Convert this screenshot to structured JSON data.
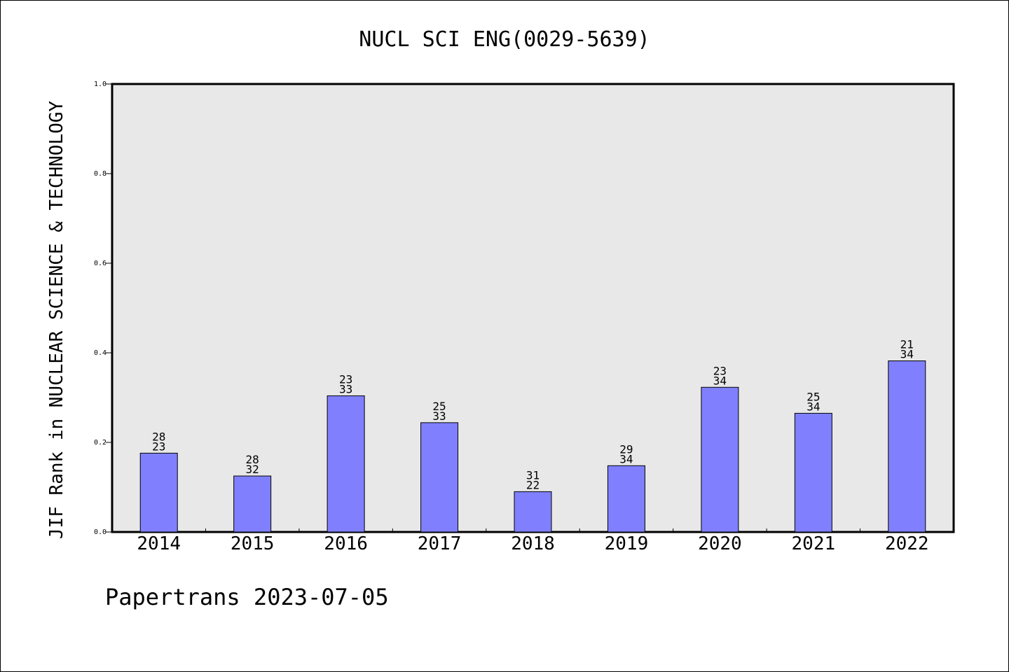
{
  "chart_data": {
    "type": "bar",
    "title": "NUCL SCI ENG(0029-5639)",
    "ylabel": "JIF Rank in NUCLEAR SCIENCE & TECHNOLOGY",
    "xlabel": "",
    "ylim": [
      0,
      1.0
    ],
    "yticks": [
      "0.0",
      "0.2",
      "0.4",
      "0.6",
      "0.8",
      "1.0"
    ],
    "categories": [
      "2014",
      "2015",
      "2016",
      "2017",
      "2018",
      "2019",
      "2020",
      "2021",
      "2022"
    ],
    "values": [
      0.176,
      0.125,
      0.304,
      0.244,
      0.09,
      0.148,
      0.323,
      0.265,
      0.382
    ],
    "labels_top": [
      "28",
      "28",
      "23",
      "25",
      "31",
      "29",
      "23",
      "25",
      "21"
    ],
    "labels_bottom": [
      "23",
      "32",
      "33",
      "33",
      "22",
      "34",
      "34",
      "34",
      "34"
    ],
    "bar_color": "#8080ff",
    "plot_background": "#e8e8e8",
    "grid": false,
    "legend": "none"
  },
  "footer": "Papertrans 2023-07-05"
}
